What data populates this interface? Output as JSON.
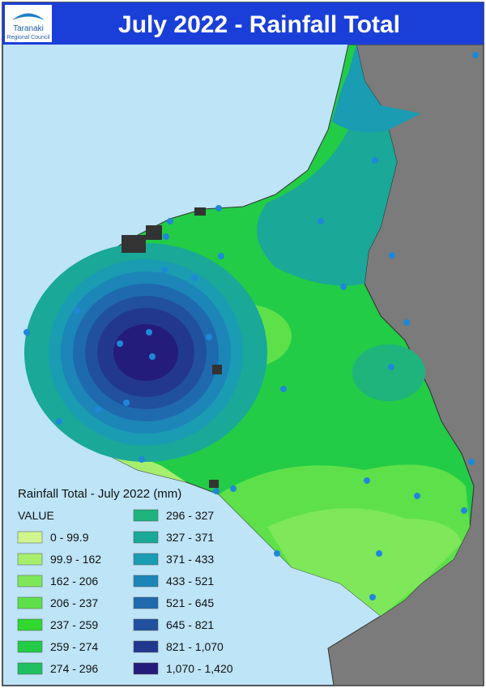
{
  "header": {
    "logo_line1": "Taranaki",
    "logo_line2": "Regional Council",
    "title": "July 2022 - Rainfall Total"
  },
  "legend": {
    "title": "Rainfall Total - July 2022 (mm)",
    "heading": "VALUE",
    "items": [
      {
        "label": "0 - 99.9",
        "color": "#d0f58c"
      },
      {
        "label": "99.9 - 162",
        "color": "#a6ee6e"
      },
      {
        "label": "162 - 206",
        "color": "#7ee85a"
      },
      {
        "label": "206 - 237",
        "color": "#5ee04a"
      },
      {
        "label": "237 - 259",
        "color": "#30d830"
      },
      {
        "label": "259 - 274",
        "color": "#22cc46"
      },
      {
        "label": "274 - 296",
        "color": "#1fbf60"
      },
      {
        "label": "296 - 327",
        "color": "#1eb47c"
      },
      {
        "label": "327 - 371",
        "color": "#1aa898"
      },
      {
        "label": "371 - 433",
        "color": "#1a9cb2"
      },
      {
        "label": "433 - 521",
        "color": "#1c86b8"
      },
      {
        "label": "521 - 645",
        "color": "#1f6aae"
      },
      {
        "label": "645 - 821",
        "color": "#21509f"
      },
      {
        "label": "821 - 1,070",
        "color": "#22388f"
      },
      {
        "label": "1,070 - 1,420",
        "color": "#241c7a"
      }
    ]
  }
}
